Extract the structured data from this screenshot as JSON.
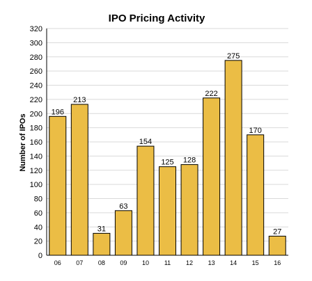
{
  "chart_data": {
    "type": "bar",
    "title": "IPO Pricing Activity",
    "xlabel": "",
    "ylabel": "Number of IPOs",
    "categories": [
      "06",
      "07",
      "08",
      "09",
      "10",
      "11",
      "12",
      "13",
      "14",
      "15",
      "16"
    ],
    "values": [
      196,
      213,
      31,
      63,
      154,
      125,
      128,
      222,
      275,
      170,
      27
    ],
    "ylim": [
      0,
      320
    ],
    "yticks": [
      0,
      20,
      40,
      60,
      80,
      100,
      120,
      140,
      160,
      180,
      200,
      220,
      240,
      260,
      280,
      300,
      320
    ],
    "grid": true,
    "bar_color": "#ebbd45",
    "data_labels": true
  }
}
